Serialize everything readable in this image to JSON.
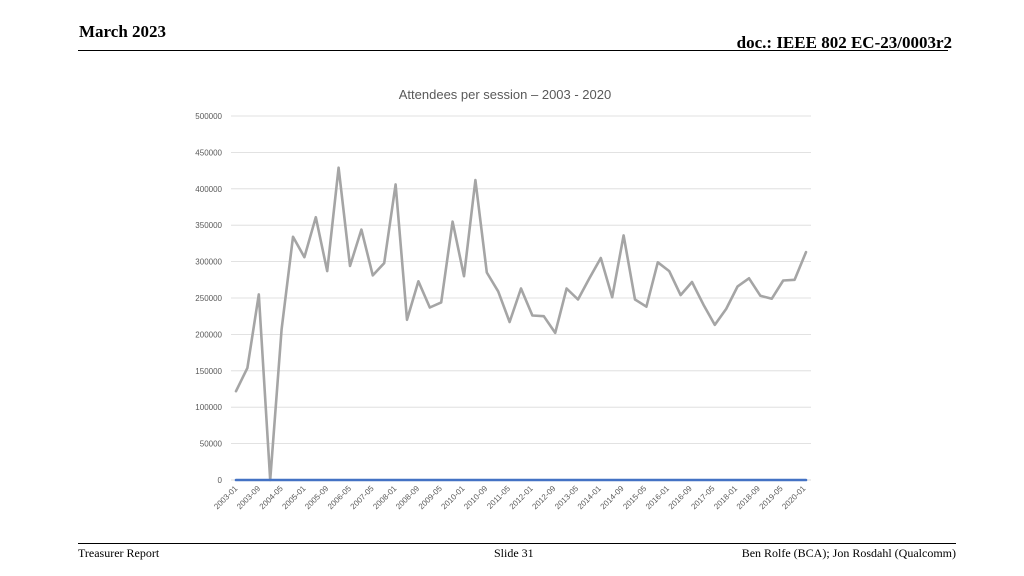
{
  "header": {
    "date": "March 2023",
    "doc_id": "doc.: IEEE 802 EC-23/0003r2"
  },
  "footer": {
    "left": "Treasurer Report",
    "center": "Slide 31",
    "right": "Ben Rolfe (BCA);   Jon Rosdahl (Qualcomm)"
  },
  "chart_data": {
    "type": "line",
    "title": "Attendees per session – 2003 - 2020",
    "xlabel": "",
    "ylabel": "",
    "ylim": [
      0,
      500000
    ],
    "yticks": [
      0,
      50000,
      100000,
      150000,
      200000,
      250000,
      300000,
      350000,
      400000,
      450000,
      500000
    ],
    "grid": true,
    "xtick_labels": [
      "2003-01",
      "2003-09",
      "2004-05",
      "2005-01",
      "2005-09",
      "2006-05",
      "2007-05",
      "2008-01",
      "2008-09",
      "2009-05",
      "2010-01",
      "2010-09",
      "2011-05",
      "2012-01",
      "2012-09",
      "2013-05",
      "2014-01",
      "2014-09",
      "2015-05",
      "2016-01",
      "2016-09",
      "2017-05",
      "2018-01",
      "2018-09",
      "2019-05",
      "2020-01"
    ],
    "series": [
      {
        "color": "#a5a5a5",
        "values": [
          122000,
          154000,
          255000,
          0,
          207000,
          334000,
          306000,
          361000,
          287000,
          429000,
          294000,
          344000,
          281000,
          298000,
          406000,
          220000,
          273000,
          237000,
          244000,
          355000,
          280000,
          412000,
          285000,
          259000,
          217000,
          263000,
          226000,
          225000,
          202000,
          263000,
          248000,
          277000,
          305000,
          251000,
          336000,
          248000,
          238000,
          299000,
          287000,
          254000,
          272000,
          241000,
          213000,
          235000,
          266000,
          277000,
          253000,
          249000,
          274000,
          275000,
          313000
        ]
      },
      {
        "color": "#4472c4",
        "values": [
          0,
          0,
          0,
          0,
          0,
          0,
          0,
          0,
          0,
          0,
          0,
          0,
          0,
          0,
          0,
          0,
          0,
          0,
          0,
          0,
          0,
          0,
          0,
          0,
          0,
          0,
          0,
          0,
          0,
          0,
          0,
          0,
          0,
          0,
          0,
          0,
          0,
          0,
          0,
          0,
          0,
          0,
          0,
          0,
          0,
          0,
          0,
          0,
          0,
          0,
          0
        ]
      }
    ]
  }
}
